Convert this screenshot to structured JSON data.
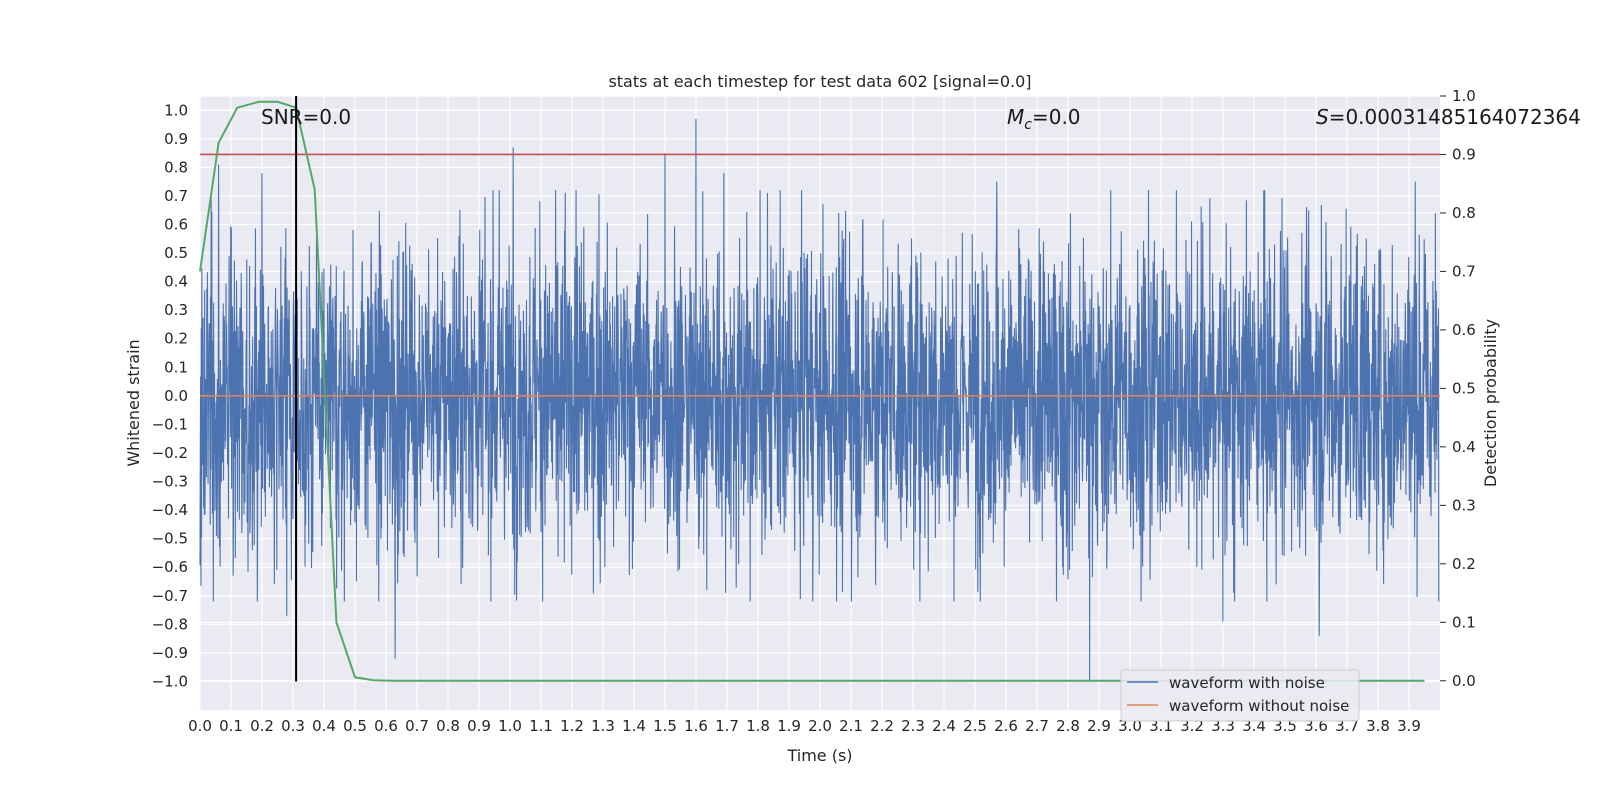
{
  "chart_data": {
    "type": "line",
    "title": "stats at each timestep for test data 602 [signal=0.0]",
    "xlabel": "Time (s)",
    "ylabel": "Whitened strain",
    "ylabel_right": "Detection probability",
    "xlim": [
      0.0,
      4.0
    ],
    "ylim": [
      -1.1,
      1.05
    ],
    "ylim_right": [
      -0.05,
      1.0
    ],
    "x_ticks": [
      "0.0",
      "0.1",
      "0.2",
      "0.3",
      "0.4",
      "0.5",
      "0.6",
      "0.7",
      "0.8",
      "0.9",
      "1.0",
      "1.1",
      "1.2",
      "1.3",
      "1.4",
      "1.5",
      "1.6",
      "1.7",
      "1.8",
      "1.9",
      "2.0",
      "2.1",
      "2.2",
      "2.3",
      "2.4",
      "2.5",
      "2.6",
      "2.7",
      "2.8",
      "2.9",
      "3.0",
      "3.1",
      "3.2",
      "3.3",
      "3.4",
      "3.5",
      "3.6",
      "3.7",
      "3.8",
      "3.9"
    ],
    "y_ticks": [
      "1.0",
      "0.9",
      "0.8",
      "0.7",
      "0.6",
      "0.5",
      "0.4",
      "0.3",
      "0.2",
      "0.1",
      "0.0",
      "−0.1",
      "−0.2",
      "−0.3",
      "−0.4",
      "−0.5",
      "−0.6",
      "−0.7",
      "−0.8",
      "−0.9",
      "−1.0"
    ],
    "y_ticks_right": [
      "1.0",
      "0.9",
      "0.8",
      "0.7",
      "0.6",
      "0.5",
      "0.4",
      "0.3",
      "0.2",
      "0.1",
      "0.0"
    ],
    "grid": true,
    "legend_position": "bottom-right",
    "annotations": {
      "snr": "SNR=0.0",
      "mc_symbol": "M",
      "mc_sub": "c",
      "mc_value": "=0.0",
      "s_symbol": "S",
      "s_value": "=0.00031485164072364"
    },
    "series": [
      {
        "name": "waveform with noise",
        "color": "#4c72b0",
        "style": "dense noise, amplitude mostly within ±0.5",
        "peaks": [
          {
            "x": 0.06,
            "y": 0.81
          },
          {
            "x": 0.2,
            "y": 0.78
          },
          {
            "x": 0.28,
            "y": -0.77
          },
          {
            "x": 0.63,
            "y": -0.92
          },
          {
            "x": 1.01,
            "y": 0.87
          },
          {
            "x": 1.5,
            "y": 0.85
          },
          {
            "x": 1.6,
            "y": 0.97
          },
          {
            "x": 1.69,
            "y": 0.78
          },
          {
            "x": 2.57,
            "y": 0.75
          },
          {
            "x": 2.87,
            "y": 0.79
          },
          {
            "x": 2.87,
            "y": -1.0
          },
          {
            "x": 3.3,
            "y": -0.79
          },
          {
            "x": 3.61,
            "y": -0.84
          },
          {
            "x": 3.92,
            "y": 0.75
          }
        ]
      },
      {
        "name": "waveform without noise",
        "color": "#dd8452",
        "x": [
          0.0,
          4.0
        ],
        "y": [
          0.0,
          0.0
        ]
      },
      {
        "color": "#55a868",
        "axis": "right",
        "x": [
          0.0,
          0.06,
          0.12,
          0.19,
          0.25,
          0.31,
          0.37,
          0.44,
          0.5,
          0.56,
          0.62,
          3.95
        ],
        "y": [
          0.7,
          0.92,
          0.98,
          0.99,
          0.99,
          0.98,
          0.84,
          0.1,
          0.006,
          0.001,
          0.0,
          0.0
        ]
      }
    ],
    "threshold": {
      "color": "#c44e52",
      "axis": "right",
      "y": 0.9
    },
    "marker_line": {
      "color": "#000000",
      "x": 0.31,
      "y_top": 1.0,
      "y_bottom": -1.0
    }
  }
}
